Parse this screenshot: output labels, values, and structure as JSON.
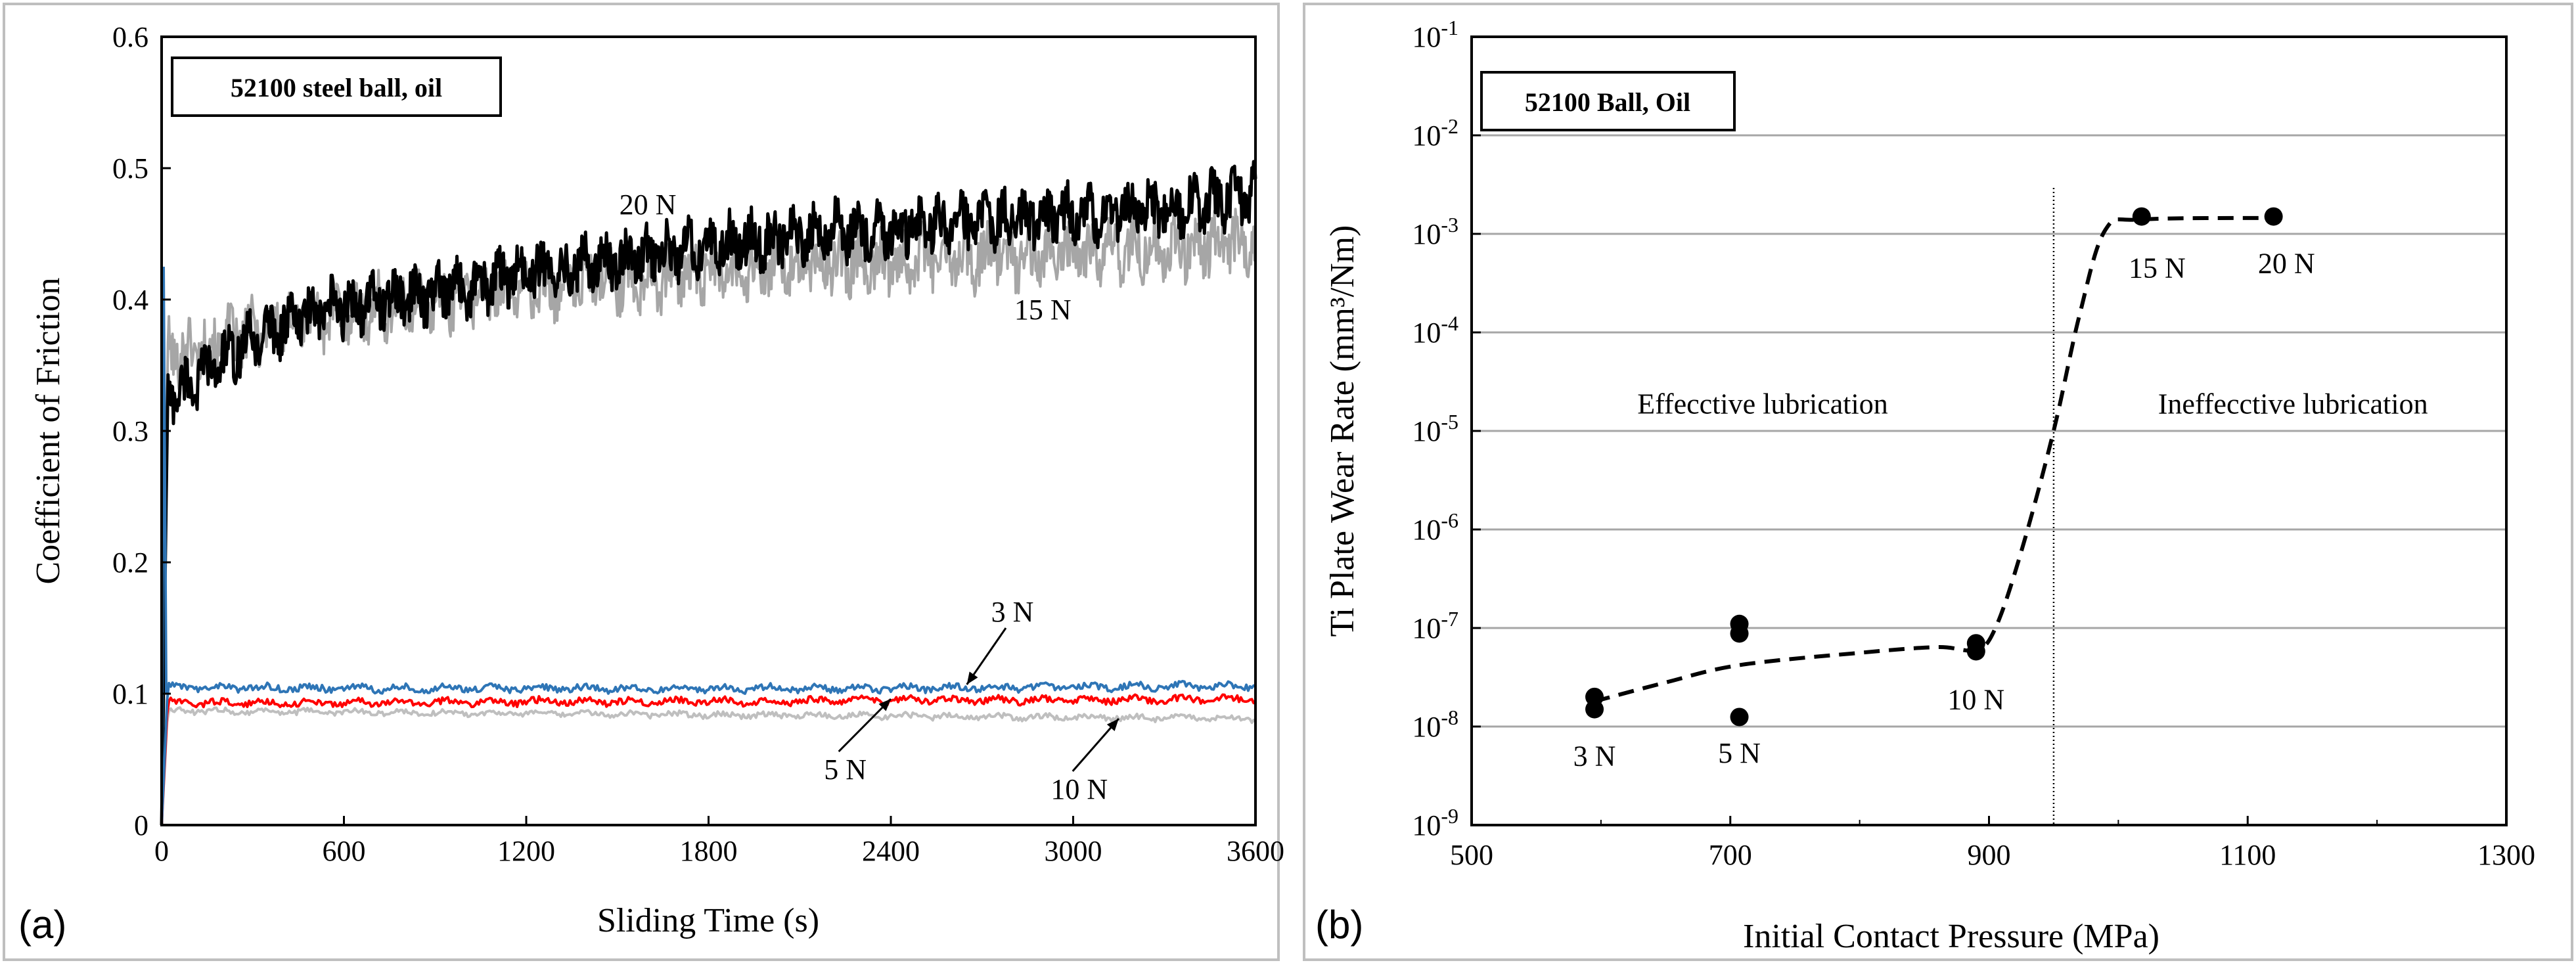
{
  "chart_data": [
    {
      "type": "line",
      "panel_label": "(a)",
      "title": "52100 steel ball, oil",
      "xlabel": "Sliding Time (s)",
      "ylabel": "Coefficient of Friction",
      "xlim": [
        0,
        3600
      ],
      "ylim": [
        0,
        0.6
      ],
      "xticks": [
        "0",
        "600",
        "1200",
        "1800",
        "2400",
        "3000",
        "3600"
      ],
      "yticks": [
        "0",
        "0.1",
        "0.2",
        "0.3",
        "0.4",
        "0.5",
        "0.6"
      ],
      "series": [
        {
          "name": "20 N",
          "color": "#000000",
          "x": [
            0,
            20,
            60,
            150,
            300,
            450,
            600,
            900,
            1200,
            1500,
            1800,
            2100,
            2400,
            2700,
            3000,
            3300,
            3600
          ],
          "y": [
            0,
            0.33,
            0.33,
            0.345,
            0.37,
            0.385,
            0.395,
            0.405,
            0.42,
            0.43,
            0.44,
            0.45,
            0.455,
            0.46,
            0.465,
            0.47,
            0.48
          ]
        },
        {
          "name": "15 N",
          "color": "#a6a6a6",
          "x": [
            0,
            20,
            60,
            150,
            300,
            450,
            600,
            900,
            1200,
            1500,
            1800,
            2100,
            2400,
            2700,
            3000,
            3300,
            3600
          ],
          "y": [
            0,
            0.36,
            0.36,
            0.365,
            0.375,
            0.385,
            0.39,
            0.4,
            0.41,
            0.415,
            0.42,
            0.425,
            0.43,
            0.432,
            0.435,
            0.44,
            0.445
          ]
        },
        {
          "name": "3 N",
          "color": "#2e75b6",
          "x": [
            0,
            20,
            600,
            1200,
            1800,
            2400,
            3000,
            3600
          ],
          "y": [
            0,
            0.105,
            0.104,
            0.104,
            0.104,
            0.104,
            0.105,
            0.106
          ]
        },
        {
          "name": "5 N",
          "color": "#ff0000",
          "x": [
            0,
            20,
            600,
            1200,
            1800,
            2400,
            3000,
            3600
          ],
          "y": [
            0,
            0.093,
            0.093,
            0.094,
            0.094,
            0.095,
            0.095,
            0.096
          ]
        },
        {
          "name": "10 N",
          "color": "#bfbfbf",
          "x": [
            0,
            20,
            600,
            1200,
            1800,
            2400,
            3000,
            3600
          ],
          "y": [
            0,
            0.087,
            0.086,
            0.085,
            0.084,
            0.083,
            0.082,
            0.081
          ]
        }
      ],
      "initial_spike": {
        "x": 0,
        "y": 0.425
      },
      "annotations": [
        {
          "text": "20 N",
          "x": 1600,
          "y": 0.465,
          "arrow": false
        },
        {
          "text": "15 N",
          "x": 2900,
          "y": 0.385,
          "arrow": false
        },
        {
          "text": "3 N",
          "x": 2800,
          "y": 0.155,
          "arrow_to": [
            2650,
            0.107
          ]
        },
        {
          "text": "5 N",
          "x": 2250,
          "y": 0.035,
          "arrow_to": [
            2400,
            0.096
          ]
        },
        {
          "text": "10 N",
          "x": 3020,
          "y": 0.02,
          "arrow_to": [
            3150,
            0.081
          ]
        }
      ]
    },
    {
      "type": "scatter",
      "panel_label": "(b)",
      "title": "52100 Ball, Oil",
      "xlabel": "Initial Contact Pressure (MPa)",
      "ylabel": "Ti Plate Wear Rate (mm³/Nm)",
      "yscale": "log",
      "xlim": [
        500,
        1300
      ],
      "ylim_exp": [
        -9,
        -1
      ],
      "xticks": [
        "500",
        "700",
        "900",
        "1100",
        "1300"
      ],
      "yticks": [
        "10-9",
        "10-8",
        "10-7",
        "10-6",
        "10-5",
        "10-4",
        "10-3",
        "10-2",
        "10-1"
      ],
      "points": [
        {
          "x": 595,
          "y": 2e-08
        },
        {
          "x": 595,
          "y": 1.5e-08
        },
        {
          "x": 707,
          "y": 1.1e-07
        },
        {
          "x": 707,
          "y": 8.8e-08
        },
        {
          "x": 707,
          "y": 1.25e-08
        },
        {
          "x": 890,
          "y": 7e-08
        },
        {
          "x": 890,
          "y": 5.8e-08
        },
        {
          "x": 1018,
          "y": 0.0015
        },
        {
          "x": 1120,
          "y": 0.0015
        }
      ],
      "trend_line": {
        "x": [
          595,
          650,
          707,
          800,
          860,
          890,
          905,
          925,
          950,
          970,
          990,
          1018,
          1120
        ],
        "y": [
          1.8e-08,
          2.8e-08,
          4.2e-08,
          5.6e-08,
          6.4e-08,
          6e-08,
          1e-07,
          6e-07,
          1e-05,
          0.00015,
          0.0011,
          0.0014,
          0.00145
        ]
      },
      "regime_boundary_x": 950,
      "regions": [
        {
          "text": "Effecctive lubrication",
          "x": 725,
          "y": 1.5e-05
        },
        {
          "text": "Ineffecctive lubrication",
          "x": 1135,
          "y": 1.5e-05
        }
      ],
      "point_labels": [
        {
          "text": "3 N",
          "x": 595,
          "y": 4e-09
        },
        {
          "text": "5 N",
          "x": 707,
          "y": 4.3e-09
        },
        {
          "text": "10 N",
          "x": 890,
          "y": 1.5e-08
        },
        {
          "text": "15 N",
          "x": 1030,
          "y": 0.00036
        },
        {
          "text": "20 N",
          "x": 1130,
          "y": 0.0004
        }
      ]
    }
  ]
}
